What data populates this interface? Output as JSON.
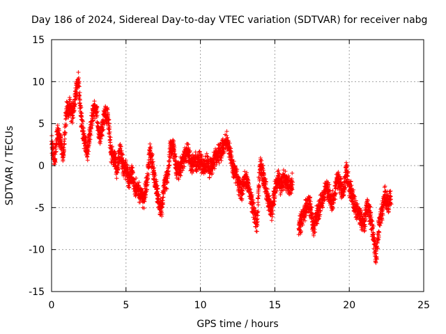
{
  "chart_data": {
    "type": "scatter",
    "title": "Day 186 of 2024, Sidereal Day-to-day VTEC variation (SDTVAR) for receiver nabg",
    "xlabel": "GPS time / hours",
    "ylabel": "SDTVAR / TECUs",
    "xlim": [
      0,
      25
    ],
    "ylim": [
      -15,
      15
    ],
    "xticks": [
      0,
      5,
      10,
      15,
      20,
      25
    ],
    "yticks": [
      -15,
      -10,
      -5,
      0,
      5,
      10,
      15
    ],
    "grid": true,
    "marker": "+",
    "color": "#ff0000",
    "series": [
      {
        "name": "SDTVAR",
        "x": [
          0.0,
          0.2,
          0.4,
          0.6,
          0.8,
          1.0,
          1.2,
          1.4,
          1.6,
          1.8,
          2.0,
          2.2,
          2.4,
          2.6,
          2.8,
          3.0,
          3.2,
          3.4,
          3.6,
          3.8,
          4.0,
          4.2,
          4.4,
          4.6,
          4.8,
          5.0,
          5.2,
          5.4,
          5.6,
          5.8,
          6.0,
          6.2,
          6.4,
          6.6,
          6.8,
          7.0,
          7.2,
          7.4,
          7.6,
          7.8,
          8.0,
          8.2,
          8.4,
          8.6,
          8.8,
          9.0,
          9.2,
          9.4,
          9.6,
          9.8,
          10.0,
          10.2,
          10.4,
          10.6,
          10.8,
          11.0,
          11.2,
          11.4,
          11.6,
          11.8,
          12.0,
          12.2,
          12.4,
          12.6,
          12.8,
          13.0,
          13.2,
          13.4,
          13.6,
          13.8,
          14.0,
          14.2,
          14.4,
          14.6,
          14.8,
          15.0,
          15.2,
          15.4,
          15.6,
          15.8,
          16.0,
          16.2,
          16.4,
          16.6,
          16.8,
          17.0,
          17.2,
          17.4,
          17.6,
          17.8,
          18.0,
          18.2,
          18.4,
          18.6,
          18.8,
          19.0,
          19.2,
          19.4,
          19.6,
          19.8,
          20.0,
          20.2,
          20.4,
          20.6,
          20.8,
          21.0,
          21.2,
          21.4,
          21.6,
          21.8,
          22.0,
          22.2,
          22.4,
          22.6,
          22.8
        ],
        "y": [
          2.5,
          0.5,
          4.0,
          3.0,
          1.0,
          6.5,
          7.0,
          6.0,
          8.5,
          10.0,
          5.5,
          3.0,
          1.5,
          4.0,
          6.5,
          7.0,
          3.5,
          4.5,
          6.5,
          5.5,
          1.5,
          1.0,
          -0.5,
          2.0,
          0.0,
          -0.5,
          -1.5,
          -1.0,
          -2.5,
          -3.0,
          -3.5,
          -4.0,
          -2.0,
          1.5,
          0.0,
          -2.5,
          -4.5,
          -5.0,
          -2.0,
          -1.5,
          2.5,
          2.0,
          -0.5,
          -0.5,
          0.5,
          1.5,
          1.5,
          0.0,
          0.5,
          0.5,
          0.5,
          -0.5,
          0.5,
          -0.5,
          0.0,
          1.0,
          1.5,
          1.5,
          2.5,
          3.0,
          1.5,
          -0.5,
          -1.0,
          -2.5,
          -3.0,
          -1.5,
          -2.0,
          -4.0,
          -5.5,
          -7.0,
          0.0,
          -1.0,
          -3.0,
          -4.5,
          -5.5,
          -3.0,
          -1.5,
          -2.5,
          -1.5,
          -2.0,
          -2.5,
          -2.0,
          null,
          -7.5,
          -6.5,
          -5.5,
          -4.5,
          -5.0,
          -7.5,
          -6.0,
          -5.0,
          -4.0,
          -2.5,
          -3.0,
          -4.5,
          -3.5,
          -1.5,
          -2.5,
          -3.5,
          -0.5,
          -2.5,
          -3.5,
          -5.0,
          -5.5,
          -6.5,
          -7.0,
          -4.5,
          -6.0,
          -8.0,
          -11.0,
          -7.0,
          -5.5,
          -3.5,
          -4.5,
          -4.0
        ]
      }
    ]
  }
}
